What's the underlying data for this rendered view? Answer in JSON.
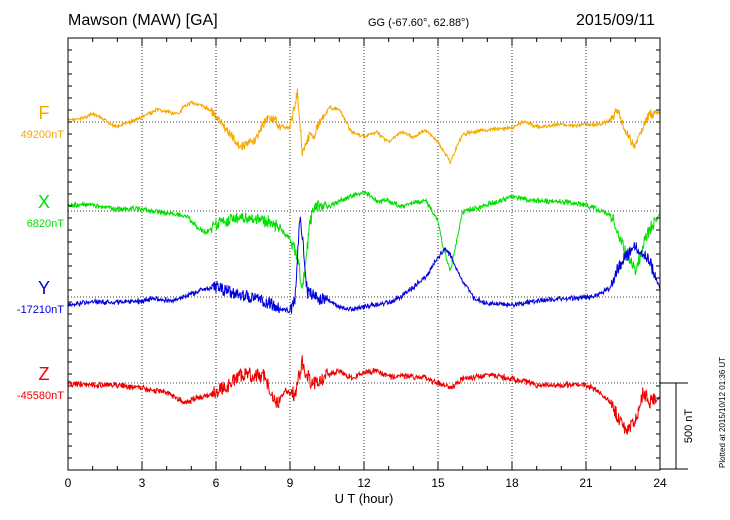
{
  "header": {
    "title": "Mawson (MAW)  [GA]",
    "coords": "GG (-67.60°,  62.88°)",
    "date": "2015/09/11"
  },
  "footer": {
    "stamp": "Plotted at 2015/10/12 01:36 UT"
  },
  "chart_data": {
    "type": "line",
    "xlabel": "U T (hour)",
    "xlim": [
      0,
      24
    ],
    "xticks": [
      0,
      3,
      6,
      9,
      12,
      15,
      18,
      21,
      24
    ],
    "scale_bar_label": "500 nT",
    "grid": true,
    "series": [
      {
        "name": "F",
        "baseline_label": "49200nT",
        "color": "#f5a800",
        "amp": 1.0,
        "keypoints": [
          [
            0,
            2
          ],
          [
            0.5,
            3
          ],
          [
            1,
            8
          ],
          [
            2,
            -5
          ],
          [
            3,
            5
          ],
          [
            3.6,
            12
          ],
          [
            4.5,
            8
          ],
          [
            4.7,
            15
          ],
          [
            5,
            20
          ],
          [
            5.8,
            12
          ],
          [
            6,
            5
          ],
          [
            6.5,
            -10
          ],
          [
            7,
            -25
          ],
          [
            7.6,
            -18
          ],
          [
            8,
            2
          ],
          [
            8.2,
            5
          ],
          [
            8.6,
            -4
          ],
          [
            9,
            -6
          ],
          [
            9.3,
            30
          ],
          [
            9.5,
            -30
          ],
          [
            9.8,
            -14
          ],
          [
            10,
            -12
          ],
          [
            10.3,
            5
          ],
          [
            10.6,
            15
          ],
          [
            11,
            12
          ],
          [
            11.5,
            -10
          ],
          [
            12,
            -15
          ],
          [
            12.5,
            -10
          ],
          [
            13,
            -20
          ],
          [
            13.5,
            -10
          ],
          [
            14,
            -15
          ],
          [
            14.5,
            -8
          ],
          [
            15,
            -20
          ],
          [
            15.5,
            -40
          ],
          [
            16,
            -12
          ],
          [
            16.5,
            -10
          ],
          [
            17,
            -8
          ],
          [
            18,
            -6
          ],
          [
            18.5,
            1
          ],
          [
            19,
            -5
          ],
          [
            19.5,
            -4
          ],
          [
            20,
            -2
          ],
          [
            20.5,
            -4
          ],
          [
            21,
            -2
          ],
          [
            21.5,
            -3
          ],
          [
            22,
            2
          ],
          [
            22.3,
            12
          ],
          [
            22.6,
            -10
          ],
          [
            22.8,
            -18
          ],
          [
            23,
            -25
          ],
          [
            23.3,
            -5
          ],
          [
            23.6,
            8
          ],
          [
            24,
            10
          ]
        ]
      },
      {
        "name": "X",
        "baseline_label": "6820nT",
        "color": "#00e000",
        "amp": 1.4,
        "keypoints": [
          [
            0,
            6
          ],
          [
            1,
            6
          ],
          [
            2,
            2
          ],
          [
            3,
            2
          ],
          [
            3.5,
            0
          ],
          [
            4,
            -2
          ],
          [
            4.8,
            -5
          ],
          [
            5.2,
            -15
          ],
          [
            5.6,
            -22
          ],
          [
            6,
            -12
          ],
          [
            6.5,
            -10
          ],
          [
            7,
            -6
          ],
          [
            8,
            -10
          ],
          [
            8.5,
            -15
          ],
          [
            9,
            -28
          ],
          [
            9.3,
            -45
          ],
          [
            9.5,
            -80
          ],
          [
            9.8,
            -14
          ],
          [
            10,
            5
          ],
          [
            10.5,
            4
          ],
          [
            11,
            10
          ],
          [
            12,
            20
          ],
          [
            12.5,
            10
          ],
          [
            13,
            10
          ],
          [
            13.5,
            4
          ],
          [
            14,
            8
          ],
          [
            14.5,
            10
          ],
          [
            15,
            -10
          ],
          [
            15.2,
            -35
          ],
          [
            15.5,
            -60
          ],
          [
            15.8,
            -25
          ],
          [
            16,
            0
          ],
          [
            16.5,
            2
          ],
          [
            17,
            6
          ],
          [
            18,
            14
          ],
          [
            19,
            10
          ],
          [
            20,
            10
          ],
          [
            21,
            6
          ],
          [
            22,
            -4
          ],
          [
            22.3,
            -22
          ],
          [
            22.6,
            -40
          ],
          [
            23,
            -60
          ],
          [
            23.5,
            -22
          ],
          [
            24,
            -2
          ]
        ]
      },
      {
        "name": "Y",
        "baseline_label": "-17210nT",
        "color": "#0000dd",
        "amp": 1.4,
        "keypoints": [
          [
            0,
            -8
          ],
          [
            1,
            -5
          ],
          [
            2,
            -5
          ],
          [
            3,
            -4
          ],
          [
            3.5,
            -2
          ],
          [
            4,
            -3
          ],
          [
            4.5,
            -2
          ],
          [
            5,
            3
          ],
          [
            5.5,
            8
          ],
          [
            6,
            10
          ],
          [
            6.5,
            5
          ],
          [
            7,
            2
          ],
          [
            7.5,
            -2
          ],
          [
            8,
            -5
          ],
          [
            8.5,
            -10
          ],
          [
            9,
            -15
          ],
          [
            9.2,
            -5
          ],
          [
            9.4,
            80
          ],
          [
            9.5,
            60
          ],
          [
            9.7,
            5
          ],
          [
            10,
            0
          ],
          [
            10.5,
            -2
          ],
          [
            11,
            -10
          ],
          [
            11.5,
            -12
          ],
          [
            12,
            -10
          ],
          [
            12.5,
            -8
          ],
          [
            13,
            -6
          ],
          [
            13.5,
            0
          ],
          [
            14,
            10
          ],
          [
            14.5,
            20
          ],
          [
            15,
            40
          ],
          [
            15.3,
            48
          ],
          [
            15.5,
            42
          ],
          [
            16,
            15
          ],
          [
            16.5,
            -2
          ],
          [
            17,
            -6
          ],
          [
            18,
            -8
          ],
          [
            19,
            -4
          ],
          [
            20,
            -2
          ],
          [
            21,
            0
          ],
          [
            21.5,
            2
          ],
          [
            22,
            10
          ],
          [
            22.3,
            30
          ],
          [
            22.6,
            40
          ],
          [
            23,
            50
          ],
          [
            23.5,
            40
          ],
          [
            24,
            8
          ]
        ]
      },
      {
        "name": "Z",
        "baseline_label": "-45580nT",
        "color": "#ee0000",
        "amp": 1.6,
        "keypoints": [
          [
            0,
            0
          ],
          [
            1,
            -2
          ],
          [
            2,
            -2
          ],
          [
            3,
            -5
          ],
          [
            4,
            -10
          ],
          [
            4.8,
            -20
          ],
          [
            5.2,
            -15
          ],
          [
            5.7,
            -12
          ],
          [
            6,
            -8
          ],
          [
            6.5,
            -2
          ],
          [
            7,
            8
          ],
          [
            8,
            8
          ],
          [
            8.2,
            -10
          ],
          [
            8.5,
            -20
          ],
          [
            8.8,
            -8
          ],
          [
            9.2,
            -12
          ],
          [
            9.5,
            20
          ],
          [
            9.8,
            2
          ],
          [
            10,
            0
          ],
          [
            10.5,
            8
          ],
          [
            11,
            12
          ],
          [
            11.5,
            5
          ],
          [
            12,
            10
          ],
          [
            12.5,
            12
          ],
          [
            13,
            6
          ],
          [
            13.5,
            8
          ],
          [
            14,
            6
          ],
          [
            14.5,
            5
          ],
          [
            15,
            0
          ],
          [
            15.5,
            -5
          ],
          [
            16,
            4
          ],
          [
            17,
            8
          ],
          [
            17.5,
            6
          ],
          [
            18,
            4
          ],
          [
            18.5,
            2
          ],
          [
            19,
            -2
          ],
          [
            20,
            -2
          ],
          [
            21,
            -2
          ],
          [
            21.5,
            -8
          ],
          [
            22,
            -20
          ],
          [
            22.3,
            -35
          ],
          [
            22.6,
            -45
          ],
          [
            23,
            -40
          ],
          [
            23.3,
            -10
          ],
          [
            23.6,
            -20
          ],
          [
            24,
            -15
          ]
        ]
      }
    ]
  }
}
